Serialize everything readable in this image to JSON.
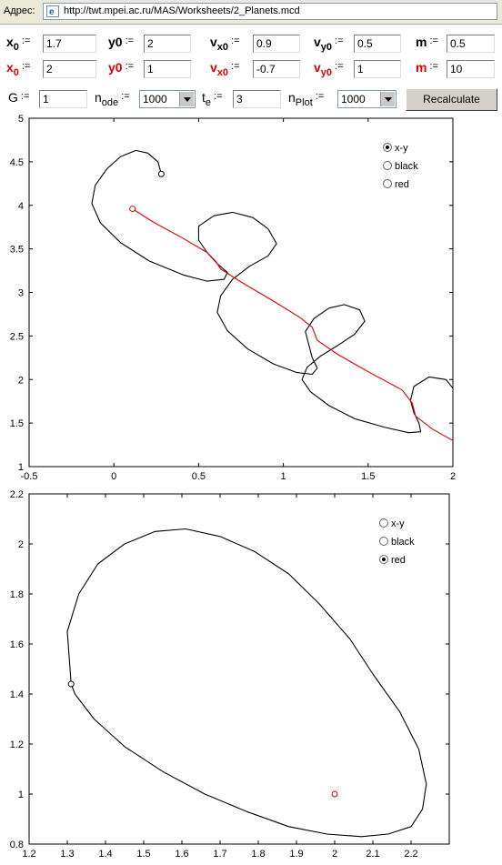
{
  "address_bar": {
    "label": "Адрес:",
    "url": "http://twt.mpei.ac.ru/MAS/Worksheets/2_Planets.mcd"
  },
  "black_body": {
    "x0": {
      "base": "x",
      "sub": "0",
      "assign": ":=",
      "value": "1.7"
    },
    "y0": {
      "base": "y0",
      "sub": "",
      "assign": ":=",
      "value": "2"
    },
    "vx0": {
      "base": "v",
      "sub": "x0",
      "assign": ":=",
      "value": "0.9"
    },
    "vy0": {
      "base": "v",
      "sub": "y0",
      "assign": ":=",
      "value": "0.5"
    },
    "m": {
      "base": "m",
      "sub": "",
      "assign": ":=",
      "value": "0.5"
    }
  },
  "red_body": {
    "x0": {
      "base": "x",
      "sub": "0",
      "assign": ":=",
      "value": "2"
    },
    "y0": {
      "base": "y0",
      "sub": "",
      "assign": ":=",
      "value": "1"
    },
    "vx0": {
      "base": "v",
      "sub": "x0",
      "assign": ":=",
      "value": "-0.7"
    },
    "vy0": {
      "base": "v",
      "sub": "y0",
      "assign": ":=",
      "value": "1"
    },
    "m": {
      "base": "m",
      "sub": "",
      "assign": ":=",
      "value": "10"
    }
  },
  "settings": {
    "G": {
      "base": "G",
      "assign": ":=",
      "value": "1"
    },
    "n_ode": {
      "base": "n",
      "sub": "ode",
      "assign": ":=",
      "selected": "1000"
    },
    "t_e": {
      "base": "t",
      "sub": "e",
      "assign": ":=",
      "value": "3"
    },
    "n_plot": {
      "base": "n",
      "sub": "Plot",
      "assign": ":=",
      "selected": "1000"
    },
    "recalculate_label": "Recalculate"
  },
  "colors": {
    "black_orbit": "#000000",
    "red_orbit": "#e00000",
    "panel": "#ece9d8"
  },
  "chart_data": [
    {
      "type": "line",
      "view": "x-y",
      "xlim": [
        -0.5,
        2
      ],
      "ylim": [
        1,
        5
      ],
      "x_ticks": [
        "-0.5",
        "0",
        "0.5",
        "1",
        "1.5",
        "2"
      ],
      "y_ticks": [
        "1",
        "1.5",
        "2",
        "2.5",
        "3",
        "3.5",
        "4",
        "4.5",
        "5"
      ],
      "legend": {
        "placement": "top-right",
        "options": [
          "x-y",
          "black",
          "red"
        ],
        "selected": "x-y"
      },
      "series": [
        {
          "color": "black",
          "start": [
            0.28,
            4.36
          ],
          "x": [
            0.28,
            0.26,
            0.2,
            0.13,
            0.04,
            -0.04,
            -0.11,
            -0.13,
            -0.08,
            0.04,
            0.21,
            0.41,
            0.55,
            0.65,
            0.67,
            0.61,
            0.55,
            0.5,
            0.5,
            0.59,
            0.7,
            0.82,
            0.91,
            0.96,
            0.91,
            0.8,
            0.7,
            0.63,
            0.61,
            0.67,
            0.79,
            0.94,
            1.08,
            1.17,
            1.2,
            1.17,
            1.15,
            1.13,
            1.18,
            1.27,
            1.36,
            1.45,
            1.48,
            1.42,
            1.32,
            1.22,
            1.14,
            1.11,
            1.16,
            1.27,
            1.42,
            1.6,
            1.74,
            1.81,
            1.8,
            1.77,
            1.75,
            1.77,
            1.86,
            1.96,
            2.0
          ],
          "y": [
            4.36,
            4.5,
            4.6,
            4.63,
            4.56,
            4.42,
            4.23,
            4.02,
            3.8,
            3.57,
            3.36,
            3.2,
            3.13,
            3.15,
            3.23,
            3.33,
            3.46,
            3.6,
            3.76,
            3.88,
            3.92,
            3.86,
            3.73,
            3.56,
            3.42,
            3.3,
            3.15,
            2.96,
            2.77,
            2.56,
            2.35,
            2.18,
            2.08,
            2.06,
            2.13,
            2.25,
            2.4,
            2.55,
            2.7,
            2.82,
            2.86,
            2.8,
            2.67,
            2.52,
            2.39,
            2.27,
            2.14,
            2.0,
            1.86,
            1.7,
            1.55,
            1.45,
            1.39,
            1.4,
            1.5,
            1.62,
            1.76,
            1.92,
            2.03,
            2.0,
            1.9
          ]
        },
        {
          "color": "red",
          "start": [
            0.11,
            3.96
          ],
          "x": [
            0.11,
            0.23,
            0.4,
            0.55,
            0.6,
            0.63,
            0.75,
            0.95,
            1.1,
            1.17,
            1.2,
            1.32,
            1.5,
            1.7,
            1.76,
            1.78,
            1.88,
            2.0
          ],
          "y": [
            3.96,
            3.81,
            3.63,
            3.46,
            3.36,
            3.27,
            3.12,
            2.89,
            2.71,
            2.6,
            2.45,
            2.29,
            2.09,
            1.88,
            1.73,
            1.58,
            1.43,
            1.3
          ]
        }
      ]
    },
    {
      "type": "line",
      "view": "red",
      "xlim": [
        1.2,
        2.3
      ],
      "ylim": [
        0.8,
        2.2
      ],
      "x_ticks": [
        "1.2",
        "1.3",
        "1.4",
        "1.5",
        "1.6",
        "1.7",
        "1.8",
        "1.9",
        "2",
        "2.1",
        "2.2"
      ],
      "y_ticks": [
        "0.8",
        "1",
        "1.2",
        "1.4",
        "1.6",
        "1.8",
        "2",
        "2.2"
      ],
      "legend": {
        "placement": "top-right",
        "options": [
          "x-y",
          "black",
          "red"
        ],
        "selected": "red"
      },
      "series": [
        {
          "color": "black",
          "start": [
            1.31,
            1.44
          ],
          "x": [
            1.31,
            1.3,
            1.33,
            1.38,
            1.45,
            1.53,
            1.61,
            1.7,
            1.79,
            1.88,
            1.96,
            2.04,
            2.1,
            2.17,
            2.22,
            2.24,
            2.23,
            2.2,
            2.14,
            2.07,
            1.98,
            1.88,
            1.77,
            1.66,
            1.55,
            1.45,
            1.37,
            1.32,
            1.31
          ],
          "y": [
            1.44,
            1.65,
            1.8,
            1.92,
            2.0,
            2.05,
            2.06,
            2.03,
            1.97,
            1.88,
            1.76,
            1.62,
            1.48,
            1.33,
            1.18,
            1.04,
            0.94,
            0.87,
            0.84,
            0.83,
            0.84,
            0.87,
            0.93,
            1.0,
            1.09,
            1.19,
            1.3,
            1.4,
            1.44
          ]
        },
        {
          "color": "red",
          "start": [
            2.0,
            1.0
          ],
          "x": [
            2.0
          ],
          "y": [
            1.0
          ]
        }
      ]
    }
  ]
}
